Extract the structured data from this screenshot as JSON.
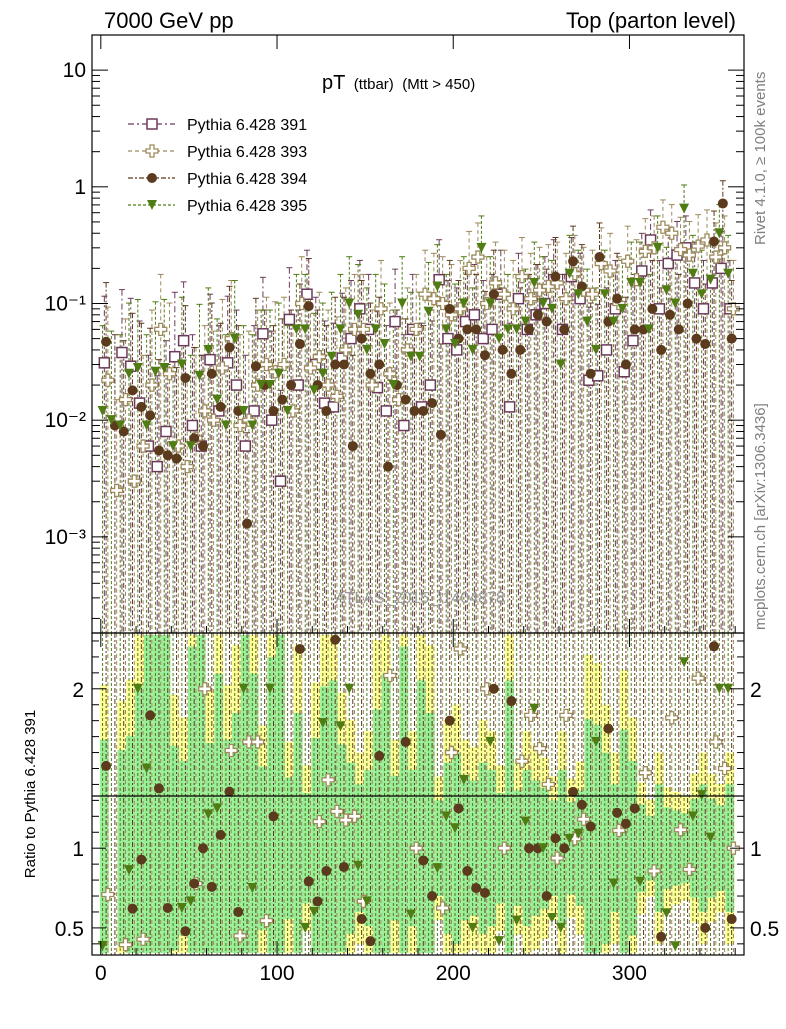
{
  "header": {
    "left": "7000 GeV pp",
    "right": "Top (parton level)"
  },
  "side_labels": {
    "rivet": "Rivet 4.1.0, ≥ 100k events",
    "mcplots": "mcplots.cern.ch [arXiv:1306.3436]"
  },
  "watermark": "ATLAS_2015_I1404878",
  "ratio_ylabel": "Ratio to Pythia 6.428 391",
  "chart_data": {
    "type": "scatter",
    "title_main": "pT",
    "title_sub": "(ttbar)",
    "title_cut": "(Mtt > 450)",
    "xlabel": "",
    "ylabel": "",
    "xlim": [
      -5,
      365
    ],
    "ylim": [
      0.00015,
      20
    ],
    "yscale": "log",
    "x_ticks": [
      "0",
      "100",
      "200",
      "300"
    ],
    "y_ticks": [
      "10⁻³",
      "10⁻²",
      "10⁻¹",
      "1",
      "10"
    ],
    "ratio": {
      "ylim": [
        0.33,
        2.35
      ],
      "ticks": [
        "0.5",
        "1",
        "2"
      ],
      "reference": 1
    },
    "bin_width": 5,
    "series": [
      {
        "name": "Pythia 6.428 391",
        "color": "#6b3a5a",
        "marker": "open-square",
        "x": [
          2,
          12,
          17,
          22,
          27,
          32,
          37,
          42,
          47,
          52,
          57,
          62,
          67,
          72,
          77,
          82,
          87,
          92,
          97,
          102,
          107,
          112,
          117,
          122,
          127,
          132,
          137,
          142,
          147,
          152,
          157,
          162,
          167,
          172,
          177,
          182,
          187,
          192,
          197,
          202,
          207,
          212,
          217,
          222,
          227,
          232,
          237,
          242,
          247,
          252,
          257,
          262,
          267,
          272,
          277,
          282,
          287,
          292,
          297,
          302,
          307,
          312,
          317,
          322,
          327,
          332,
          337,
          342,
          347,
          352,
          357
        ],
        "values": [
          0.031,
          0.038,
          0.029,
          0.014,
          0.006,
          0.004,
          0.008,
          0.035,
          0.048,
          0.009,
          0.006,
          0.033,
          0.012,
          0.031,
          0.02,
          0.006,
          0.012,
          0.055,
          0.01,
          0.003,
          0.073,
          0.02,
          0.12,
          0.03,
          0.014,
          0.013,
          0.034,
          0.05,
          0.09,
          0.06,
          0.019,
          0.012,
          0.07,
          0.009,
          0.06,
          0.013,
          0.02,
          0.16,
          0.05,
          0.04,
          0.07,
          0.08,
          0.05,
          0.06,
          0.12,
          0.013,
          0.11,
          0.06,
          0.08,
          0.1,
          0.16,
          0.06,
          0.17,
          0.11,
          0.022,
          0.024,
          0.04,
          0.09,
          0.026,
          0.048,
          0.19,
          0.35,
          0.09,
          0.22,
          0.26,
          0.3,
          0.15,
          0.09,
          0.15,
          0.2,
          0.09
        ]
      },
      {
        "name": "Pythia 6.428 393",
        "color": "#9e8a5c",
        "marker": "open-cross",
        "x": [
          4,
          9,
          14,
          19,
          24,
          29,
          34,
          39,
          44,
          49,
          54,
          59,
          64,
          69,
          74,
          79,
          84,
          89,
          94,
          99,
          104,
          109,
          114,
          119,
          124,
          129,
          134,
          139,
          144,
          149,
          154,
          159,
          164,
          169,
          174,
          179,
          184,
          189,
          194,
          199,
          204,
          209,
          214,
          219,
          224,
          229,
          234,
          239,
          244,
          249,
          254,
          259,
          264,
          269,
          274,
          279,
          284,
          289,
          294,
          299,
          304,
          309,
          314,
          319,
          324,
          329,
          334,
          339,
          344,
          349,
          354,
          359
        ],
        "values": [
          0.022,
          0.0025,
          0.015,
          0.003,
          0.006,
          0.02,
          0.06,
          0.025,
          0.006,
          0.004,
          0.007,
          0.012,
          0.01,
          0.028,
          0.05,
          0.009,
          0.01,
          0.02,
          0.03,
          0.026,
          0.03,
          0.012,
          0.1,
          0.028,
          0.035,
          0.02,
          0.016,
          0.04,
          0.06,
          0.06,
          0.02,
          0.09,
          0.025,
          0.015,
          0.04,
          0.06,
          0.12,
          0.11,
          0.1,
          0.08,
          0.09,
          0.2,
          0.25,
          0.1,
          0.15,
          0.12,
          0.09,
          0.17,
          0.11,
          0.13,
          0.14,
          0.15,
          0.11,
          0.18,
          0.13,
          0.12,
          0.22,
          0.19,
          0.1,
          0.23,
          0.16,
          0.28,
          0.3,
          0.45,
          0.4,
          0.29,
          0.26,
          0.31,
          0.35,
          0.25,
          0.3,
          0.09
        ]
      },
      {
        "name": "Pythia 6.428 394",
        "color": "#5c3a1e",
        "marker": "filled-circle",
        "x": [
          3,
          8,
          13,
          18,
          23,
          28,
          33,
          38,
          43,
          48,
          53,
          58,
          63,
          68,
          73,
          78,
          83,
          88,
          93,
          98,
          103,
          108,
          113,
          118,
          123,
          128,
          133,
          138,
          143,
          148,
          153,
          158,
          163,
          168,
          173,
          178,
          183,
          188,
          193,
          198,
          203,
          208,
          213,
          218,
          223,
          228,
          233,
          238,
          243,
          248,
          253,
          258,
          263,
          268,
          273,
          278,
          283,
          288,
          293,
          298,
          303,
          308,
          313,
          318,
          323,
          328,
          333,
          338,
          343,
          348,
          353,
          358
        ],
        "values": [
          0.047,
          0.009,
          0.008,
          0.018,
          0.013,
          0.011,
          0.0055,
          0.005,
          0.0047,
          0.023,
          0.007,
          0.006,
          0.025,
          0.013,
          0.042,
          0.012,
          0.0013,
          0.029,
          0.02,
          0.012,
          0.015,
          0.02,
          0.045,
          0.095,
          0.02,
          0.012,
          0.03,
          0.03,
          0.006,
          0.05,
          0.025,
          0.03,
          0.004,
          0.02,
          0.015,
          0.012,
          0.012,
          0.014,
          0.0075,
          0.09,
          0.05,
          0.06,
          0.06,
          0.036,
          0.12,
          0.04,
          0.025,
          0.04,
          0.06,
          0.08,
          0.07,
          0.17,
          0.06,
          0.23,
          0.14,
          0.025,
          0.25,
          0.07,
          0.11,
          0.03,
          0.06,
          0.06,
          0.09,
          0.04,
          0.08,
          0.06,
          0.1,
          0.05,
          0.045,
          0.34,
          0.72,
          0.05
        ]
      },
      {
        "name": "Pythia 6.428 395",
        "color": "#4f7d14",
        "marker": "filled-triangle-down",
        "x": [
          1,
          6,
          11,
          16,
          21,
          26,
          31,
          36,
          41,
          46,
          51,
          56,
          61,
          66,
          71,
          76,
          81,
          86,
          91,
          96,
          101,
          106,
          111,
          116,
          121,
          126,
          131,
          136,
          141,
          146,
          151,
          156,
          161,
          166,
          171,
          176,
          181,
          186,
          191,
          196,
          201,
          206,
          211,
          216,
          221,
          226,
          231,
          236,
          241,
          246,
          251,
          256,
          261,
          266,
          271,
          276,
          281,
          286,
          291,
          296,
          301,
          306,
          311,
          316,
          321,
          326,
          331,
          336,
          341,
          346,
          351,
          356
        ],
        "values": [
          0.012,
          0.01,
          0.009,
          0.025,
          0.028,
          0.009,
          0.026,
          0.028,
          0.006,
          0.03,
          0.006,
          0.024,
          0.04,
          0.015,
          0.009,
          0.05,
          0.012,
          0.009,
          0.02,
          0.02,
          0.025,
          0.012,
          0.06,
          0.06,
          0.018,
          0.025,
          0.035,
          0.06,
          0.1,
          0.08,
          0.04,
          0.06,
          0.045,
          0.02,
          0.1,
          0.035,
          0.035,
          0.085,
          0.14,
          0.06,
          0.045,
          0.1,
          0.04,
          0.3,
          0.1,
          0.05,
          0.06,
          0.06,
          0.07,
          0.15,
          0.1,
          0.09,
          0.03,
          0.18,
          0.12,
          0.07,
          0.04,
          0.12,
          0.07,
          0.09,
          0.15,
          0.15,
          0.06,
          0.3,
          0.13,
          0.1,
          0.65,
          0.18,
          0.12,
          0.16,
          0.4,
          0.18
        ]
      }
    ]
  }
}
